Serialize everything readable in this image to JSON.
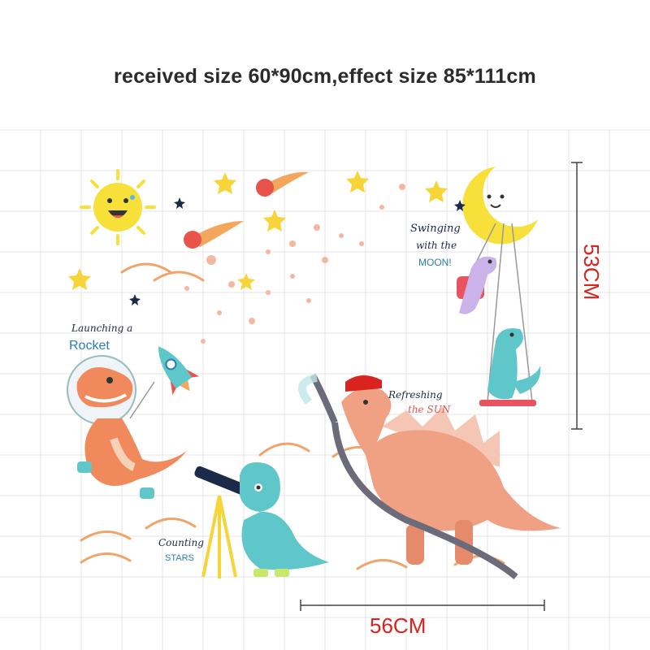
{
  "headline": "received size 60*90cm,effect size 85*111cm",
  "labels": {
    "launching_line1": "Launching a",
    "launching_line2": "Rocket",
    "swinging_line1": "Swinging",
    "swinging_line2": "with the",
    "swinging_line3": "MOON!",
    "refreshing_line1": "Refreshing",
    "refreshing_line2": "the SUN",
    "counting_line1": "Counting",
    "counting_line2": "STARS"
  },
  "dimensions": {
    "width": "56CM",
    "height": "53CM"
  },
  "colors": {
    "headline": "#2b2b2b",
    "dimension": "#d9231f",
    "sun": "#f7e03a",
    "dino_orange": "#f08a5d",
    "dino_teal": "#5fc6c9",
    "dino_peach": "#f0a184",
    "grid": "#e6e6e6"
  },
  "icons": [
    "sun-icon",
    "moon-icon",
    "star-icon",
    "comet-icon",
    "rocket-icon",
    "telescope-icon",
    "fire-hose-icon",
    "swing-icon"
  ]
}
